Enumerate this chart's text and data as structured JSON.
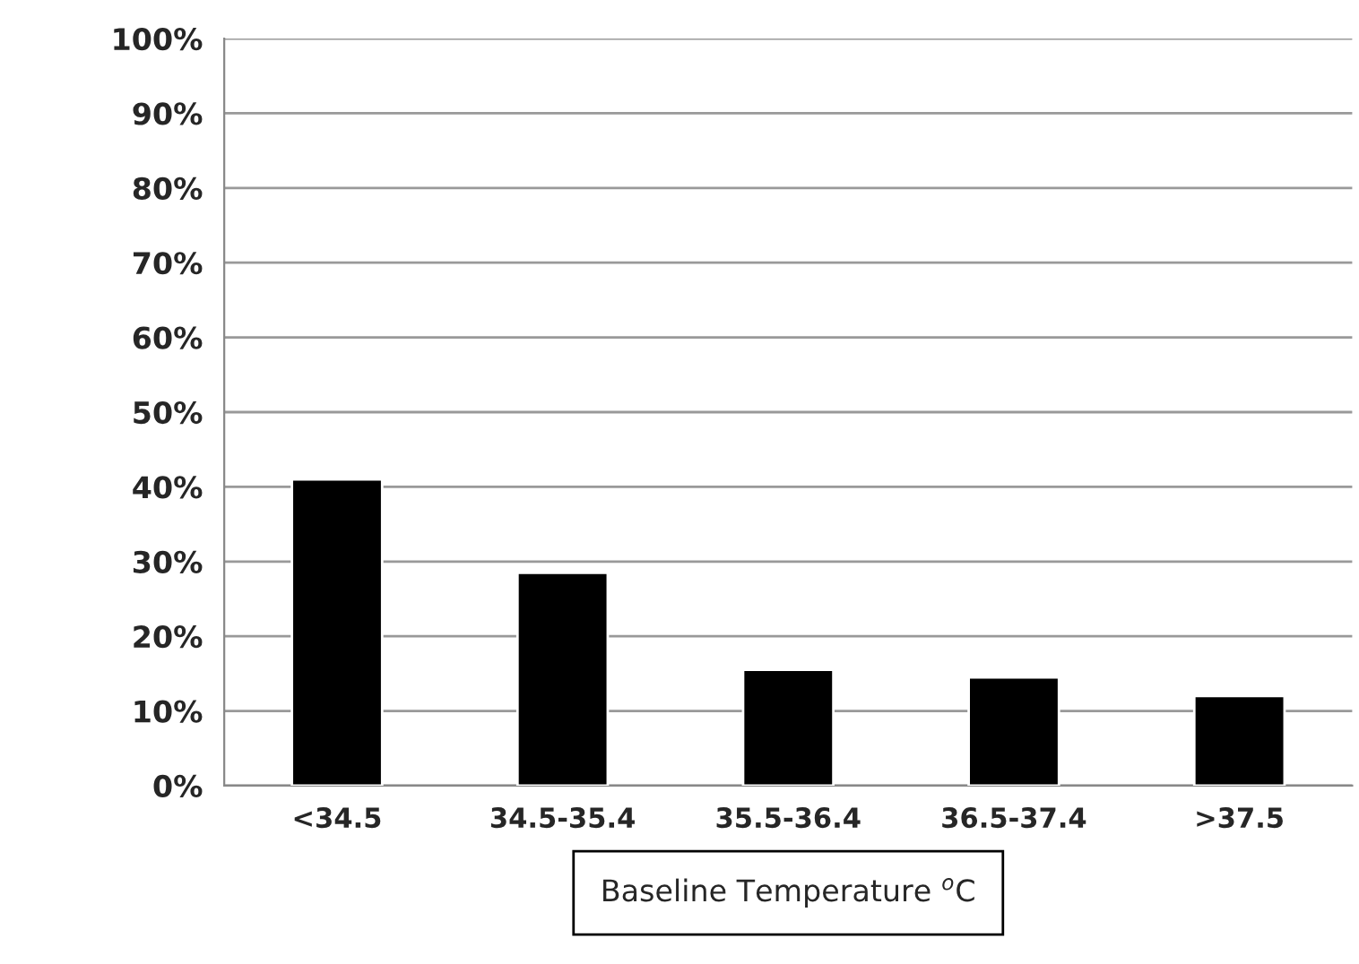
{
  "chart_data": {
    "type": "bar",
    "xlabel": "Baseline Temperature $^{o}$C",
    "categories": [
      "<34.5",
      "34.5-35.4",
      "35.5-36.4",
      "36.5-37.4",
      ">37.5"
    ],
    "values": [
      41,
      28.5,
      15.5,
      14.5,
      12
    ],
    "color": "#000000",
    "ylim": [
      0,
      100
    ],
    "yticks": [
      {
        "value": 0,
        "label": "0%"
      },
      {
        "value": 10,
        "label": "10%"
      },
      {
        "value": 20,
        "label": "20%"
      },
      {
        "value": 30,
        "label": "30%"
      },
      {
        "value": 40,
        "label": "40%"
      },
      {
        "value": 50,
        "label": "50%"
      },
      {
        "value": 60,
        "label": "60%"
      },
      {
        "value": 70,
        "label": "70%"
      },
      {
        "value": 80,
        "label": "80%"
      },
      {
        "value": 90,
        "label": "90%"
      },
      {
        "value": 100,
        "label": "100%"
      }
    ],
    "grid": "y"
  }
}
